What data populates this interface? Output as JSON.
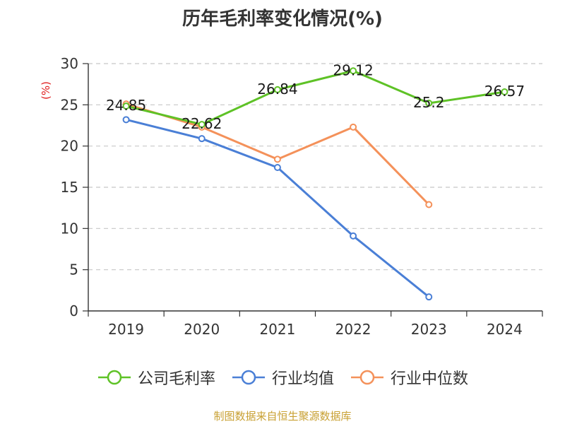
{
  "chart_data": {
    "type": "line",
    "title": "历年毛利率变化情况(%)",
    "ylabel": "(%)",
    "xlabel": "",
    "categories": [
      "2019",
      "2020",
      "2021",
      "2022",
      "2023",
      "2024"
    ],
    "ylim": [
      0,
      30
    ],
    "yticks": [
      0,
      5,
      10,
      15,
      20,
      25,
      30
    ],
    "grid": "horizontal-dashed",
    "legend_position": "bottom",
    "series": [
      {
        "name": "公司毛利率",
        "color": "#5ec226",
        "values": [
          24.85,
          22.62,
          26.84,
          29.12,
          25.2,
          26.57
        ],
        "labels": [
          "24.85",
          "22.62",
          "26.84",
          "29.12",
          "25.2",
          "26.57"
        ]
      },
      {
        "name": "行业均值",
        "color": "#4a7fd6",
        "values": [
          23.2,
          20.9,
          17.4,
          9.1,
          1.7,
          null
        ]
      },
      {
        "name": "行业中位数",
        "color": "#f4915a",
        "values": [
          25.1,
          22.3,
          18.4,
          22.3,
          12.9,
          null
        ]
      }
    ]
  },
  "source_note": "制图数据来自恒生聚源数据库"
}
